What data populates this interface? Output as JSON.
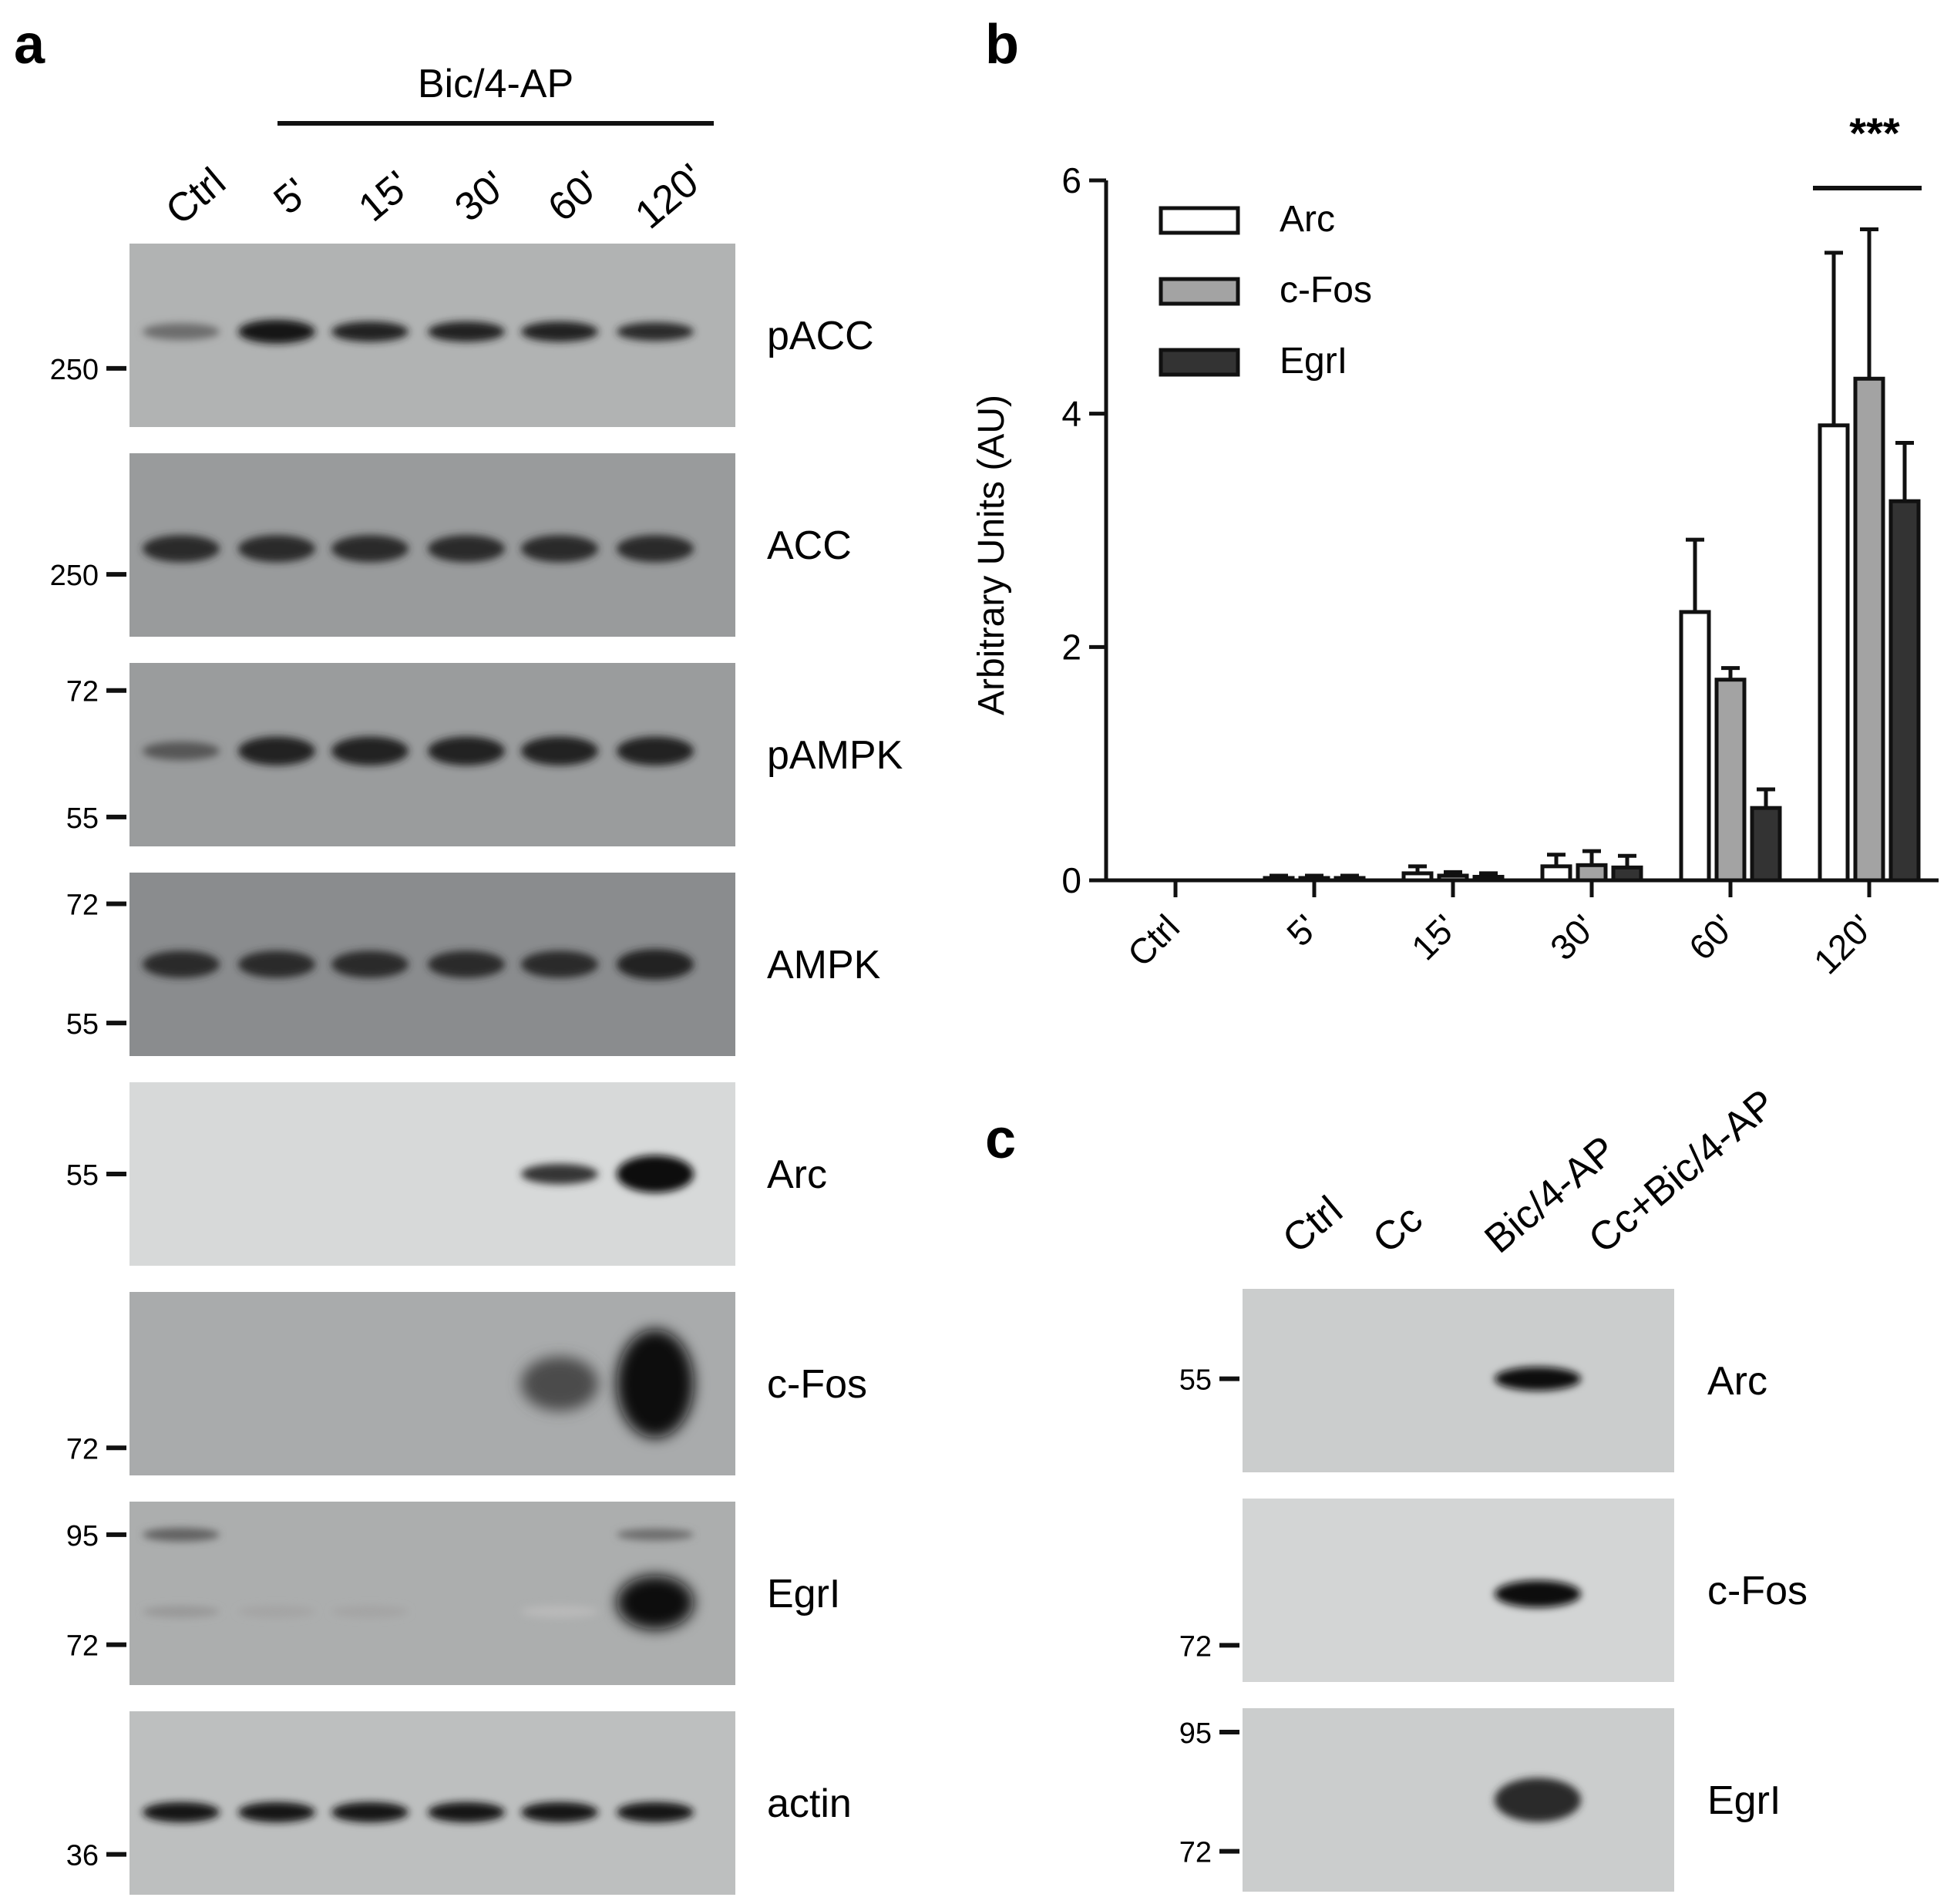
{
  "panel_a": {
    "letter": "a",
    "treatment": "Bic/4-AP",
    "lanes": [
      "Ctrl",
      "5'",
      "15'",
      "30'",
      "60'",
      "120'"
    ],
    "blots": [
      {
        "name": "pACC",
        "label": "pACC",
        "markers": [
          "250"
        ],
        "bands": [
          {
            "lane": 0,
            "intensity": 0.55,
            "h": 0.5
          },
          {
            "lane": 1,
            "intensity": 0.95,
            "h": 0.7
          },
          {
            "lane": 2,
            "intensity": 0.9,
            "h": 0.6
          },
          {
            "lane": 3,
            "intensity": 0.9,
            "h": 0.6
          },
          {
            "lane": 4,
            "intensity": 0.9,
            "h": 0.6
          },
          {
            "lane": 5,
            "intensity": 0.85,
            "h": 0.55
          }
        ]
      },
      {
        "name": "ACC",
        "label": "ACC",
        "markers": [
          "250"
        ],
        "bands": [
          {
            "lane": 0,
            "intensity": 0.85,
            "h": 0.8
          },
          {
            "lane": 1,
            "intensity": 0.85,
            "h": 0.8
          },
          {
            "lane": 2,
            "intensity": 0.85,
            "h": 0.8
          },
          {
            "lane": 3,
            "intensity": 0.85,
            "h": 0.8
          },
          {
            "lane": 4,
            "intensity": 0.85,
            "h": 0.8
          },
          {
            "lane": 5,
            "intensity": 0.85,
            "h": 0.8
          }
        ]
      },
      {
        "name": "pAMPK",
        "label": "pAMPK",
        "markers": [
          "72",
          "55"
        ],
        "bands": [
          {
            "lane": 0,
            "intensity": 0.65,
            "h": 0.55
          },
          {
            "lane": 1,
            "intensity": 0.9,
            "h": 0.85
          },
          {
            "lane": 2,
            "intensity": 0.9,
            "h": 0.85
          },
          {
            "lane": 3,
            "intensity": 0.9,
            "h": 0.85
          },
          {
            "lane": 4,
            "intensity": 0.9,
            "h": 0.85
          },
          {
            "lane": 5,
            "intensity": 0.9,
            "h": 0.85
          }
        ]
      },
      {
        "name": "AMPK",
        "label": "AMPK",
        "markers": [
          "72",
          "55"
        ],
        "bands": [
          {
            "lane": 0,
            "intensity": 0.85,
            "h": 0.8
          },
          {
            "lane": 1,
            "intensity": 0.85,
            "h": 0.8
          },
          {
            "lane": 2,
            "intensity": 0.85,
            "h": 0.8
          },
          {
            "lane": 3,
            "intensity": 0.85,
            "h": 0.8
          },
          {
            "lane": 4,
            "intensity": 0.85,
            "h": 0.8
          },
          {
            "lane": 5,
            "intensity": 0.9,
            "h": 0.9
          }
        ]
      },
      {
        "name": "Arc",
        "label": "Arc",
        "markers": [
          "55"
        ],
        "bands": [
          {
            "lane": 4,
            "intensity": 0.8,
            "h": 0.6
          },
          {
            "lane": 5,
            "intensity": 1.0,
            "h": 1.1
          }
        ]
      },
      {
        "name": "c-Fos",
        "label": "c-Fos",
        "markers": [
          "72"
        ],
        "bands": [
          {
            "lane": 4,
            "intensity": 0.7,
            "h": 1.6
          },
          {
            "lane": 5,
            "intensity": 1.0,
            "h": 3.2
          }
        ]
      },
      {
        "name": "Egr1",
        "label": "EgrI",
        "markers": [
          "95",
          "72"
        ],
        "bands": [
          {
            "lane": 0,
            "intensity": 0.6,
            "h": 0.4,
            "pos": 0.18
          },
          {
            "lane": 0,
            "intensity": 0.35,
            "h": 0.35,
            "pos": 0.6
          },
          {
            "lane": 1,
            "intensity": 0.3,
            "h": 0.35,
            "pos": 0.6
          },
          {
            "lane": 2,
            "intensity": 0.3,
            "h": 0.35,
            "pos": 0.6
          },
          {
            "lane": 4,
            "intensity": 0.2,
            "h": 0.35,
            "pos": 0.6
          },
          {
            "lane": 5,
            "intensity": 0.55,
            "h": 0.35,
            "pos": 0.18
          },
          {
            "lane": 5,
            "intensity": 1.0,
            "h": 1.6,
            "pos": 0.55
          }
        ]
      },
      {
        "name": "actin",
        "label": "actin",
        "markers": [
          "36"
        ],
        "bands": [
          {
            "lane": 0,
            "intensity": 0.95,
            "h": 0.6
          },
          {
            "lane": 1,
            "intensity": 0.95,
            "h": 0.6
          },
          {
            "lane": 2,
            "intensity": 0.95,
            "h": 0.6
          },
          {
            "lane": 3,
            "intensity": 0.95,
            "h": 0.6
          },
          {
            "lane": 4,
            "intensity": 0.95,
            "h": 0.6
          },
          {
            "lane": 5,
            "intensity": 0.95,
            "h": 0.6
          }
        ]
      }
    ]
  },
  "panel_b": {
    "letter": "b",
    "significance": "***",
    "chart_data": {
      "type": "bar",
      "categories": [
        "Ctrl",
        "5'",
        "15'",
        "30'",
        "60'",
        "120'"
      ],
      "ylabel": "Arbitrary Units (AU)",
      "ylim": [
        0,
        6
      ],
      "yticks": [
        0,
        2,
        4,
        6
      ],
      "legend_position": "top-left",
      "grid": false,
      "series": [
        {
          "name": "Arc",
          "color": "#ffffff",
          "values": [
            0,
            0.02,
            0.06,
            0.12,
            2.3,
            3.9
          ],
          "errors": [
            0,
            0.02,
            0.06,
            0.1,
            0.62,
            1.48
          ]
        },
        {
          "name": "c-Fos",
          "color": "#a3a3a3",
          "values": [
            0,
            0.02,
            0.04,
            0.13,
            1.72,
            4.3
          ],
          "errors": [
            0,
            0.02,
            0.03,
            0.12,
            0.1,
            1.28
          ]
        },
        {
          "name": "EgrI",
          "color": "#333333",
          "values": [
            0,
            0.02,
            0.03,
            0.11,
            0.62,
            3.25
          ],
          "errors": [
            0,
            0.02,
            0.03,
            0.1,
            0.16,
            0.5
          ]
        }
      ]
    }
  },
  "panel_c": {
    "letter": "c",
    "lanes": [
      "Ctrl",
      "Cc",
      "Bic/4-AP",
      "Cc+Bic/4-AP"
    ],
    "blots": [
      {
        "name": "Arc",
        "label": "Arc",
        "markers": [
          "55"
        ],
        "bands": [
          {
            "lane": 2,
            "intensity": 1.0,
            "h": 0.7
          }
        ]
      },
      {
        "name": "c-Fos",
        "label": "c-Fos",
        "markers": [
          "72"
        ],
        "bands": [
          {
            "lane": 2,
            "intensity": 1.0,
            "h": 0.8
          }
        ]
      },
      {
        "name": "Egr1",
        "label": "EgrI",
        "markers": [
          "95",
          "72"
        ],
        "bands": [
          {
            "lane": 2,
            "intensity": 0.85,
            "h": 1.3
          }
        ]
      }
    ]
  }
}
